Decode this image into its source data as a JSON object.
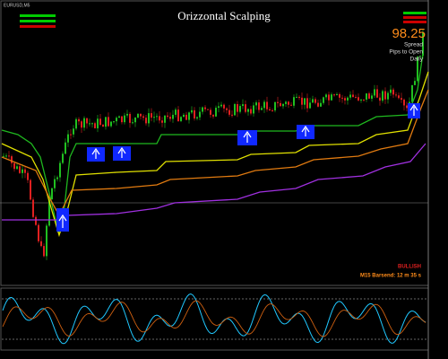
{
  "window": {
    "symbol_info": "EURUSD,M5",
    "title": "Orizzontal Scalping"
  },
  "info_panel": {
    "spread_value": "98.25",
    "labels": [
      "Spread",
      "Pips to Open",
      "Daily"
    ]
  },
  "status": {
    "signal": "BULLISH",
    "bar_timer": "M15 Barsend: 12 m 35 s"
  }
}
